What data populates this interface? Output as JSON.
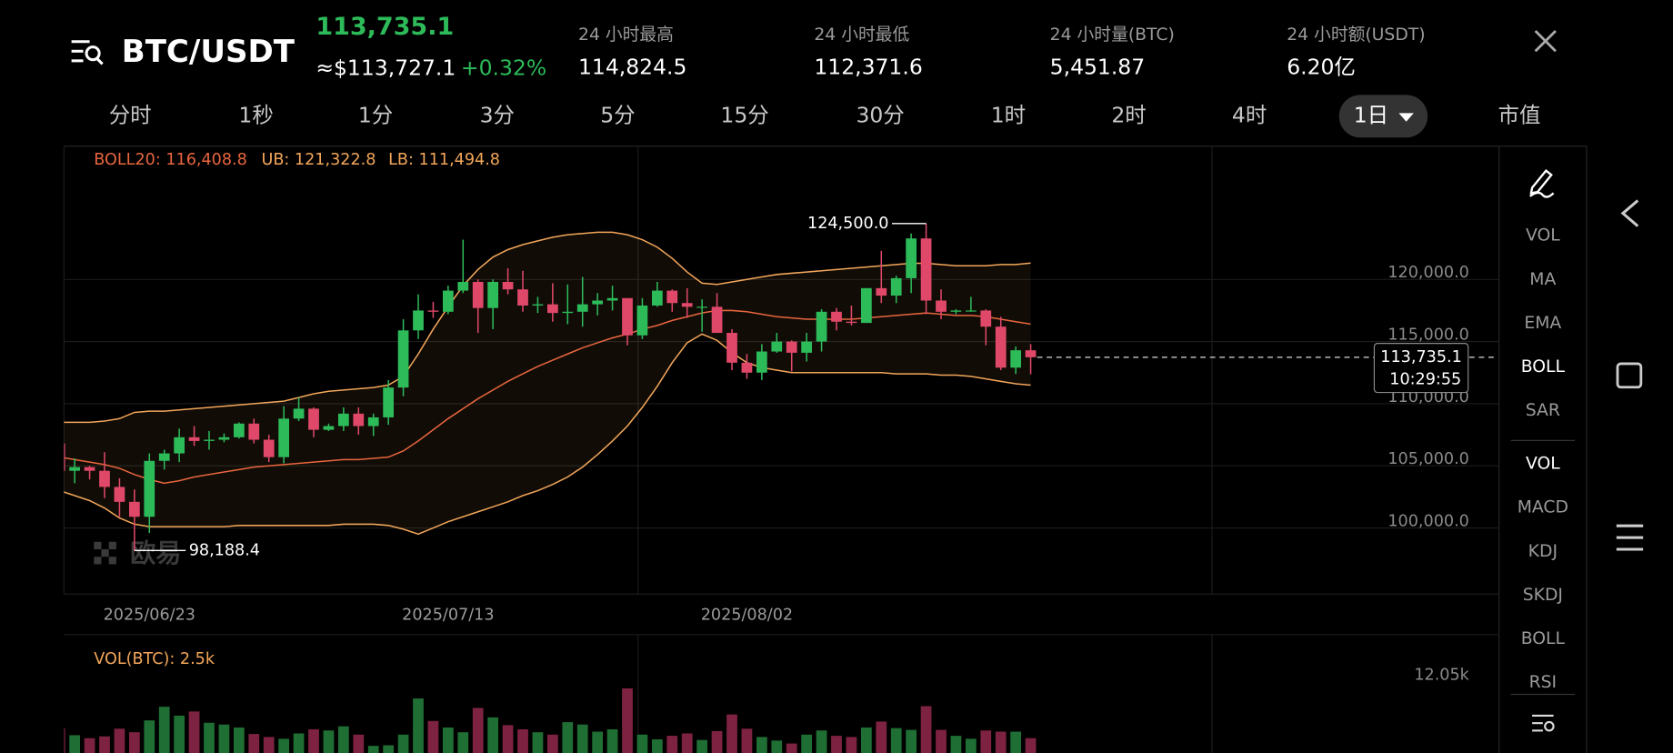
{
  "header": {
    "symbol": "BTC/USDT",
    "last_price": "113,735.1",
    "fiat_price": "≈$113,727.1",
    "change": "+0.32%",
    "stats": [
      {
        "label": "24 小时最高",
        "value": "114,824.5"
      },
      {
        "label": "24 小时最低",
        "value": "112,371.6"
      },
      {
        "label": "24 小时量(BTC)",
        "value": "5,451.87"
      },
      {
        "label": "24 小时额(USDT)",
        "value": "6.20亿"
      }
    ]
  },
  "timeframes": [
    "分时",
    "1秒",
    "1分",
    "3分",
    "5分",
    "15分",
    "30分",
    "1时",
    "2时",
    "4时",
    "1日",
    "市值"
  ],
  "active_timeframe": 10,
  "indicators": {
    "main": [
      "VOL",
      "MA",
      "EMA",
      "BOLL",
      "SAR"
    ],
    "sub": [
      "VOL",
      "MACD",
      "KDJ",
      "SKDJ",
      "BOLL",
      "RSI"
    ],
    "active_main": 3,
    "active_sub": 0
  },
  "chart_data": {
    "type": "candlestick",
    "boll_legend": {
      "mid": "BOLL20: 116,408.8",
      "upper": "UB: 121,322.8",
      "lower": "LB: 111,494.8"
    },
    "vol_legend": "VOL(BTC): 2.5k",
    "watermark": "欧易",
    "categories": [
      null,
      null,
      null,
      null,
      null,
      null,
      "2025/06/23",
      null,
      null,
      null,
      null,
      null,
      null,
      null,
      null,
      null,
      null,
      null,
      null,
      null,
      null,
      null,
      null,
      null,
      null,
      null,
      "2025/07/13",
      null,
      null,
      null,
      null,
      null,
      null,
      null,
      null,
      null,
      null,
      null,
      null,
      null,
      null,
      null,
      null,
      null,
      null,
      null,
      "2025/08/02",
      null,
      null,
      null,
      null,
      null,
      null,
      null,
      null,
      null,
      null,
      null,
      null,
      null,
      null,
      null,
      null,
      null,
      null,
      null
    ],
    "ohlc": [
      [
        106800,
        107700,
        103900,
        104600
      ],
      [
        104600,
        105600,
        103600,
        104900
      ],
      [
        104900,
        105000,
        103900,
        104600
      ],
      [
        104600,
        106100,
        102400,
        103300
      ],
      [
        103300,
        104000,
        100900,
        102100
      ],
      [
        102100,
        103100,
        98188.4,
        100900
      ],
      [
        100900,
        106000,
        99600,
        105400
      ],
      [
        105400,
        106300,
        104700,
        106000
      ],
      [
        106000,
        108000,
        105300,
        107300
      ],
      [
        107300,
        108200,
        106600,
        107000
      ],
      [
        107000,
        107800,
        106300,
        107100
      ],
      [
        107100,
        107600,
        106900,
        107300
      ],
      [
        107300,
        108500,
        107200,
        108400
      ],
      [
        108400,
        108800,
        106800,
        107100
      ],
      [
        107100,
        107500,
        105300,
        105700
      ],
      [
        105700,
        109800,
        105200,
        108800
      ],
      [
        108800,
        110500,
        108600,
        109600
      ],
      [
        109600,
        109700,
        107300,
        107900
      ],
      [
        107900,
        108400,
        107800,
        108200
      ],
      [
        108200,
        109700,
        107800,
        109200
      ],
      [
        109200,
        109700,
        107500,
        108200
      ],
      [
        108200,
        109200,
        107400,
        108900
      ],
      [
        108900,
        111900,
        108300,
        111300
      ],
      [
        111300,
        116800,
        110600,
        115900
      ],
      [
        115900,
        118800,
        115200,
        117500
      ],
      [
        117500,
        118200,
        116900,
        117400
      ],
      [
        117400,
        119500,
        117200,
        119100
      ],
      [
        119100,
        123200,
        118900,
        119800
      ],
      [
        119800,
        120000,
        115700,
        117700
      ],
      [
        117700,
        120000,
        116000,
        119800
      ],
      [
        119800,
        120900,
        118800,
        119200
      ],
      [
        119200,
        120700,
        117400,
        117900
      ],
      [
        117900,
        118600,
        117300,
        118000
      ],
      [
        118000,
        119700,
        116600,
        117300
      ],
      [
        117300,
        119600,
        116400,
        117400
      ],
      [
        117400,
        120200,
        116200,
        118000
      ],
      [
        118000,
        118900,
        117100,
        118300
      ],
      [
        118300,
        119500,
        117500,
        118500
      ],
      [
        118500,
        118500,
        114700,
        115500
      ],
      [
        115500,
        118500,
        115200,
        117900
      ],
      [
        117900,
        119800,
        117800,
        119100
      ],
      [
        119100,
        119200,
        117400,
        118100
      ],
      [
        118100,
        119300,
        116900,
        117800
      ],
      [
        117800,
        118400,
        115800,
        117800
      ],
      [
        117800,
        118900,
        115700,
        115700
      ],
      [
        115700,
        116000,
        112700,
        113300
      ],
      [
        113300,
        114000,
        112000,
        112500
      ],
      [
        112500,
        114800,
        111900,
        114200
      ],
      [
        114200,
        115700,
        114100,
        115000
      ],
      [
        115000,
        115100,
        112600,
        114100
      ],
      [
        114100,
        115700,
        113400,
        115000
      ],
      [
        115000,
        117600,
        114200,
        117400
      ],
      [
        117400,
        117700,
        115900,
        116600
      ],
      [
        116600,
        117900,
        116300,
        116500
      ],
      [
        116500,
        119300,
        116500,
        119300
      ],
      [
        119300,
        122300,
        118100,
        118700
      ],
      [
        118700,
        120300,
        118100,
        120100
      ],
      [
        120100,
        123700,
        118900,
        123300
      ],
      [
        123300,
        124500,
        117200,
        118300
      ],
      [
        118300,
        119200,
        116800,
        117400
      ],
      [
        117400,
        117600,
        117200,
        117500
      ],
      [
        117500,
        118600,
        117400,
        117500
      ],
      [
        117500,
        117600,
        114700,
        116200
      ],
      [
        116200,
        117000,
        112700,
        112900
      ],
      [
        112900,
        114600,
        112400,
        114300
      ],
      [
        114300,
        114800,
        112371.6,
        113735.1
      ]
    ],
    "boll_upper": [
      108500,
      108500,
      108500,
      108600,
      108800,
      109300,
      109400,
      109400,
      109500,
      109600,
      109700,
      109800,
      109900,
      110000,
      110100,
      110200,
      110500,
      110800,
      111000,
      111100,
      111200,
      111300,
      111500,
      112200,
      114000,
      116000,
      117800,
      119500,
      120800,
      121800,
      122400,
      122800,
      123100,
      123400,
      123600,
      123700,
      123800,
      123800,
      123600,
      123200,
      122600,
      121700,
      120600,
      119700,
      119600,
      119800,
      120000,
      120200,
      120400,
      120500,
      120600,
      120700,
      120800,
      120900,
      121000,
      121100,
      121200,
      121300,
      121300,
      121200,
      121100,
      121100,
      121100,
      121200,
      121200,
      121322.8
    ],
    "boll_mid": [
      105700,
      105500,
      105300,
      105100,
      104800,
      104300,
      103900,
      103600,
      103800,
      104100,
      104300,
      104500,
      104700,
      104900,
      105000,
      105100,
      105200,
      105300,
      105400,
      105500,
      105500,
      105600,
      105700,
      106200,
      107000,
      107900,
      108800,
      109600,
      110400,
      111100,
      111800,
      112400,
      113000,
      113500,
      114000,
      114500,
      114900,
      115300,
      115600,
      116000,
      116300,
      116700,
      117000,
      117300,
      117500,
      117500,
      117400,
      117200,
      117000,
      116900,
      116800,
      116800,
      116800,
      116800,
      116900,
      117000,
      117100,
      117200,
      117300,
      117200,
      117100,
      117100,
      117000,
      116800,
      116600,
      116408.8
    ],
    "boll_lower": [
      103000,
      102600,
      102200,
      101600,
      100800,
      100300,
      100100,
      100100,
      100100,
      100100,
      100100,
      100100,
      100200,
      100200,
      100200,
      100200,
      100200,
      100200,
      100200,
      100300,
      100300,
      100300,
      100200,
      99900,
      99500,
      100000,
      100500,
      100900,
      101300,
      101700,
      102100,
      102600,
      103000,
      103500,
      104100,
      104900,
      105900,
      107000,
      108200,
      109700,
      111400,
      113300,
      114900,
      115600,
      115100,
      114100,
      113300,
      112900,
      112700,
      112500,
      112500,
      112500,
      112500,
      112500,
      112500,
      112500,
      112400,
      112400,
      112400,
      112300,
      112300,
      112200,
      112000,
      111800,
      111600,
      111494.8
    ],
    "volume": [
      4200,
      3000,
      2500,
      2800,
      4100,
      3500,
      5500,
      7800,
      6300,
      7000,
      5100,
      4800,
      4300,
      3200,
      2700,
      2400,
      3300,
      4000,
      3800,
      4500,
      3100,
      1200,
      1300,
      3100,
      9200,
      5400,
      4300,
      3500,
      7600,
      6000,
      4700,
      4000,
      3500,
      3100,
      5200,
      4800,
      3600,
      4000,
      10900,
      3100,
      2300,
      2900,
      3300,
      2200,
      3700,
      6500,
      4100,
      2700,
      2100,
      1600,
      3100,
      3800,
      2900,
      2700,
      4300,
      5300,
      4200,
      3900,
      7900,
      3900,
      2900,
      2400,
      3800,
      3600,
      3600,
      2500
    ],
    "ylim": [
      94678,
      130730
    ],
    "yticks": [
      {
        "value": 100000,
        "label": "100,000.0"
      },
      {
        "value": 105000,
        "label": "105,000.0"
      },
      {
        "value": 110000,
        "label": "110,000.0"
      },
      {
        "value": 115000,
        "label": "115,000.0"
      },
      {
        "value": 120000,
        "label": "120,000.0"
      }
    ],
    "vlim": [
      0,
      12050
    ],
    "vticks": [
      {
        "value": 12050,
        "label": "12.05k"
      }
    ],
    "max_label": {
      "value": 124500,
      "label": "124,500.0"
    },
    "min_label": {
      "value": 98188.4,
      "label": "98,188.4"
    },
    "last_price": {
      "value": 113735.1,
      "label": "113,735.1",
      "time": "10:29:55"
    },
    "up_color": "#2dbb5a",
    "down_color": "#e0486a",
    "vol_up_color": "#1f6e34",
    "vol_down_color": "#7e2242",
    "band_color": "#f2a65a",
    "mid_color": "#e8663e",
    "grid": true
  }
}
